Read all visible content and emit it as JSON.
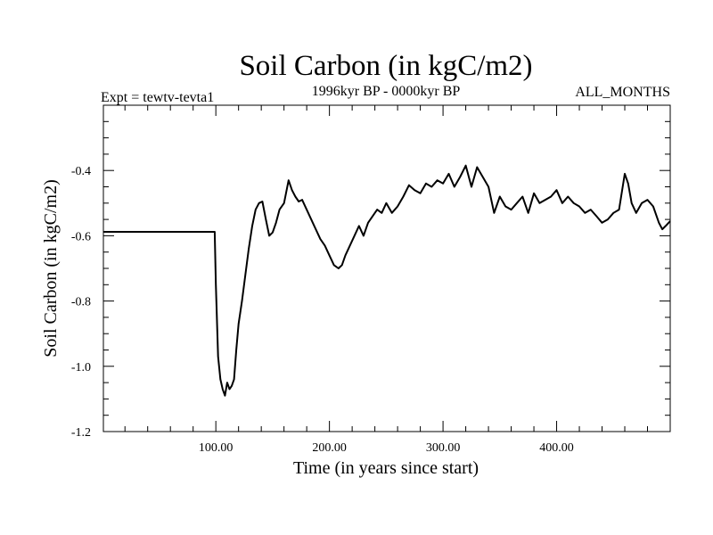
{
  "chart_data": {
    "type": "line",
    "title": "Soil Carbon (in kgC/m2)",
    "subtitle_left": "Expt = tewtv-tevta1",
    "subtitle_center": "1996kyr BP - 0000kyr BP",
    "subtitle_right": "ALL_MONTHS",
    "xlabel": "Time (in years since start)",
    "ylabel": "Soil Carbon (in kgC/m2)",
    "xlim": [
      1,
      500
    ],
    "ylim": [
      -1.2,
      -0.2
    ],
    "x_ticks": [
      100,
      200,
      300,
      400
    ],
    "x_tick_labels": [
      "100.00",
      "200.00",
      "300.00",
      "400.00"
    ],
    "y_ticks": [
      -1.2,
      -1.0,
      -0.8,
      -0.6,
      -0.4
    ],
    "y_tick_labels": [
      "-1.2",
      "-1.0",
      "-0.8",
      "-0.6",
      "-0.4"
    ],
    "grid": false,
    "series": [
      {
        "name": "soil carbon",
        "x": [
          1,
          99,
          100,
          102,
          104,
          106,
          108,
          110,
          112,
          114,
          116,
          118,
          120,
          123,
          126,
          129,
          132,
          135,
          138,
          141,
          144,
          147,
          150,
          153,
          156,
          160,
          164,
          167,
          170,
          173,
          176,
          180,
          184,
          188,
          192,
          196,
          200,
          204,
          208,
          211,
          214,
          218,
          222,
          226,
          230,
          234,
          238,
          242,
          246,
          250,
          255,
          260,
          265,
          270,
          275,
          280,
          285,
          290,
          295,
          300,
          305,
          310,
          315,
          320,
          325,
          330,
          335,
          340,
          345,
          350,
          355,
          360,
          365,
          370,
          375,
          380,
          385,
          390,
          395,
          400,
          405,
          410,
          415,
          420,
          425,
          430,
          435,
          440,
          445,
          450,
          455,
          460,
          463,
          466,
          470,
          475,
          480,
          485,
          490,
          493,
          496,
          500
        ],
        "values": [
          -0.588,
          -0.588,
          -0.75,
          -0.97,
          -1.04,
          -1.07,
          -1.09,
          -1.05,
          -1.07,
          -1.06,
          -1.04,
          -0.95,
          -0.87,
          -0.8,
          -0.72,
          -0.64,
          -0.57,
          -0.52,
          -0.5,
          -0.495,
          -0.55,
          -0.6,
          -0.59,
          -0.56,
          -0.52,
          -0.5,
          -0.43,
          -0.46,
          -0.48,
          -0.495,
          -0.49,
          -0.52,
          -0.55,
          -0.58,
          -0.61,
          -0.63,
          -0.66,
          -0.69,
          -0.7,
          -0.69,
          -0.66,
          -0.63,
          -0.6,
          -0.57,
          -0.6,
          -0.56,
          -0.54,
          -0.52,
          -0.53,
          -0.5,
          -0.53,
          -0.51,
          -0.48,
          -0.445,
          -0.46,
          -0.47,
          -0.44,
          -0.45,
          -0.43,
          -0.44,
          -0.41,
          -0.45,
          -0.42,
          -0.385,
          -0.45,
          -0.39,
          -0.42,
          -0.45,
          -0.53,
          -0.48,
          -0.51,
          -0.52,
          -0.5,
          -0.48,
          -0.53,
          -0.47,
          -0.5,
          -0.49,
          -0.48,
          -0.46,
          -0.5,
          -0.48,
          -0.5,
          -0.51,
          -0.53,
          -0.52,
          -0.54,
          -0.56,
          -0.55,
          -0.53,
          -0.52,
          -0.41,
          -0.44,
          -0.5,
          -0.53,
          -0.5,
          -0.49,
          -0.51,
          -0.56,
          -0.58,
          -0.57,
          -0.555
        ]
      }
    ]
  }
}
